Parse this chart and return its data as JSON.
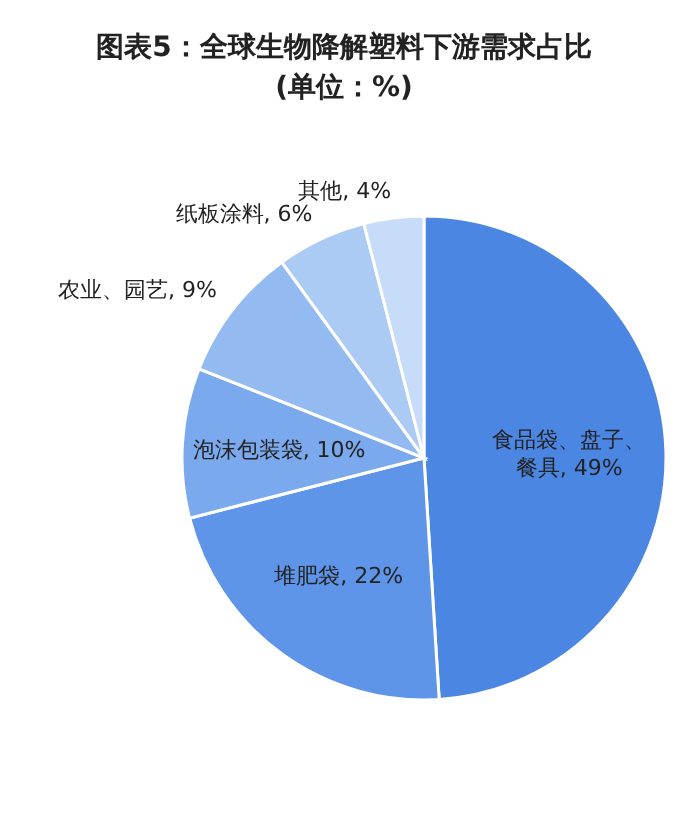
{
  "chart_data": {
    "type": "pie",
    "title": "图表5：全球生物降解塑料下游需求占比",
    "subtitle": "(单位：%)",
    "categories": [
      "食品袋、盘子、餐具",
      "堆肥袋",
      "泡沫包装袋",
      "农业、园艺",
      "纸板涂料",
      "其他"
    ],
    "values": [
      49,
      22,
      10,
      9,
      6,
      4
    ],
    "value_labels": [
      "49%",
      "22%",
      "10%",
      "9%",
      "6%",
      "4%"
    ],
    "colors": [
      "#4a86e2",
      "#5e95e8",
      "#7aa9ee",
      "#93baf1",
      "#abcbf5",
      "#c6dcf9"
    ],
    "legend": false
  }
}
